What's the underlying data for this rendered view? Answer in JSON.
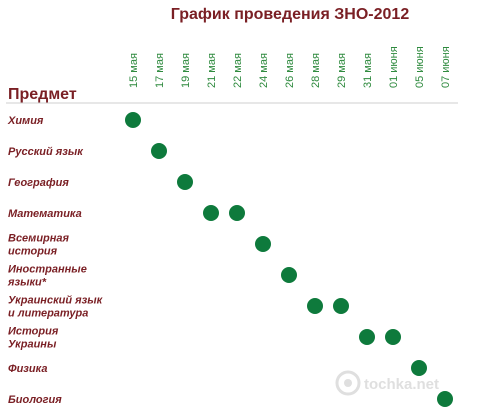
{
  "chart_data": {
    "type": "scatter",
    "title": "График проведения ЗНО-2012",
    "categories_label": "Предмет",
    "dates": [
      "15 мая",
      "17 мая",
      "19 мая",
      "21 мая",
      "22 мая",
      "24 мая",
      "26 мая",
      "28 мая",
      "29 мая",
      "31 мая",
      "01 июня",
      "05 июня",
      "07 июня"
    ],
    "subjects": [
      {
        "lines": [
          "Химия"
        ],
        "dates": [
          "15 мая"
        ]
      },
      {
        "lines": [
          "Русский язык"
        ],
        "dates": [
          "17 мая"
        ]
      },
      {
        "lines": [
          "География"
        ],
        "dates": [
          "19 мая"
        ]
      },
      {
        "lines": [
          "Математика"
        ],
        "dates": [
          "21 мая",
          "22 мая"
        ]
      },
      {
        "lines": [
          "Всемирная",
          "история"
        ],
        "dates": [
          "24 мая"
        ]
      },
      {
        "lines": [
          "Иностранные",
          "языки*"
        ],
        "dates": [
          "26 мая"
        ]
      },
      {
        "lines": [
          "Украинский язык",
          "и литература"
        ],
        "dates": [
          "28 мая",
          "29 мая"
        ]
      },
      {
        "lines": [
          "История",
          "Украины"
        ],
        "dates": [
          "31 мая",
          "01 июня"
        ]
      },
      {
        "lines": [
          "Физика"
        ],
        "dates": [
          "05 июня"
        ]
      },
      {
        "lines": [
          "Биология"
        ],
        "dates": [
          "07 июня"
        ]
      }
    ],
    "dot_color": "#0e7a3c",
    "text_color": "#7a1f24",
    "date_color": "#2e8a3e"
  },
  "watermark": {
    "text": "tochka.net"
  }
}
